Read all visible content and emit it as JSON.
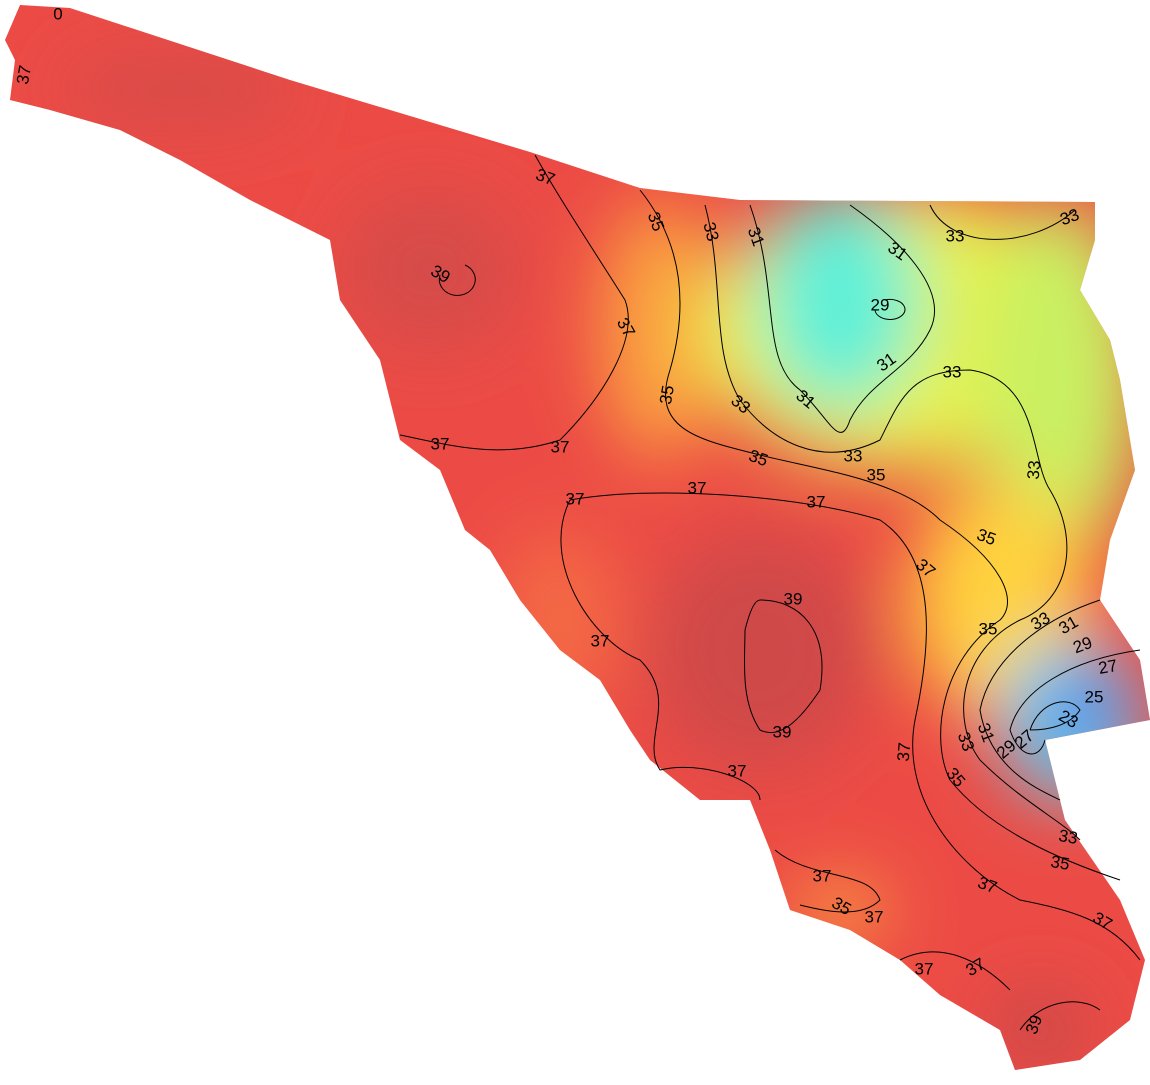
{
  "map": {
    "contour_labels": [
      "0",
      "37",
      "37",
      "35",
      "33",
      "31",
      "31",
      "33",
      "33",
      "39",
      "29",
      "37",
      "31",
      "33",
      "35",
      "33",
      "31",
      "37",
      "37",
      "35",
      "33",
      "35",
      "33",
      "37",
      "37",
      "37",
      "35",
      "37",
      "39",
      "37",
      "35",
      "33",
      "31",
      "29",
      "27",
      "25",
      "23",
      "39",
      "31",
      "27",
      "29",
      "33",
      "37",
      "37",
      "35",
      "33",
      "35",
      "37",
      "37",
      "35",
      "37",
      "37",
      "37",
      "37",
      "39"
    ]
  }
}
